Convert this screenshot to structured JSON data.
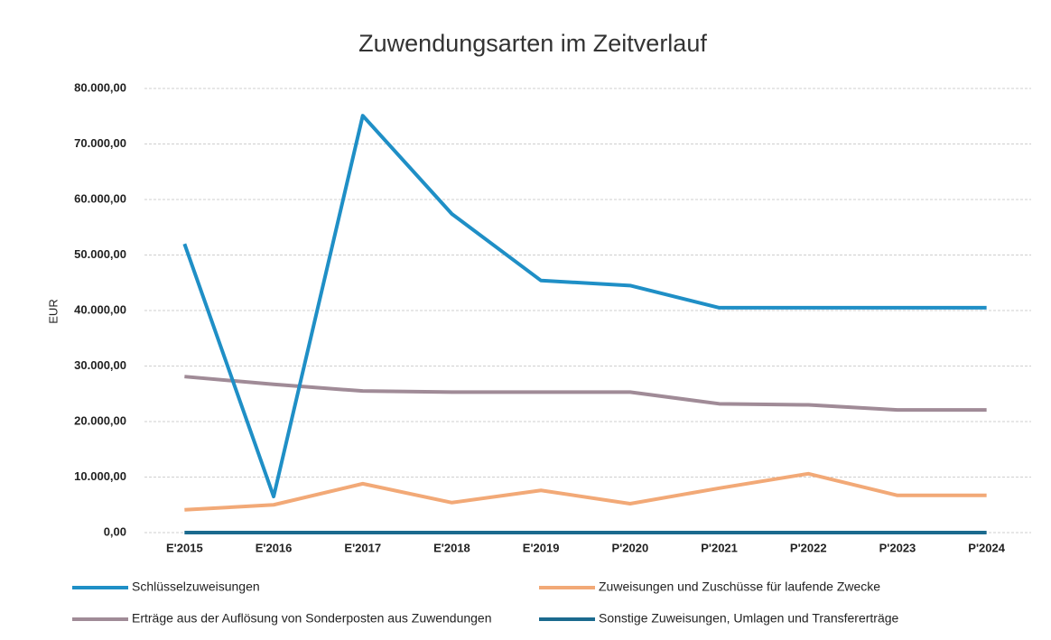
{
  "chart_data": {
    "type": "line",
    "title": "Zuwendungsarten im Zeitverlauf",
    "y_label": "EUR",
    "categories": [
      "E'2015",
      "E'2016",
      "E'2017",
      "E'2018",
      "E'2019",
      "P'2020",
      "P'2021",
      "P'2022",
      "P'2023",
      "P'2024"
    ],
    "series": [
      {
        "name": "Schlüsselzuweisungen",
        "color": "#1f8fc6",
        "values": [
          52000,
          6500,
          75100,
          57400,
          45400,
          44500,
          40500,
          40500,
          40500,
          40500
        ]
      },
      {
        "name": "Zuweisungen und Zuschüsse für laufende Zwecke",
        "color": "#f2a977",
        "values": [
          4100,
          5000,
          8800,
          5400,
          7600,
          5200,
          8000,
          10600,
          6700,
          6700
        ]
      },
      {
        "name": "Erträge aus der Auflösung von Sonderposten aus Zuwendungen",
        "color": "#a08b97",
        "values": [
          28100,
          26700,
          25500,
          25300,
          25300,
          25300,
          23200,
          23000,
          22100,
          22100
        ]
      },
      {
        "name": "Sonstige Zuweisungen, Umlagen und Transfererträge",
        "color": "#1b6a8e",
        "values": [
          0,
          0,
          0,
          0,
          0,
          0,
          0,
          0,
          0,
          0
        ]
      }
    ],
    "ylim": [
      0,
      80000
    ],
    "yticks": [
      {
        "value": 0,
        "label": "0,00"
      },
      {
        "value": 10000,
        "label": "10.000,00"
      },
      {
        "value": 20000,
        "label": "20.000,00"
      },
      {
        "value": 30000,
        "label": "30.000,00"
      },
      {
        "value": 40000,
        "label": "40.000,00"
      },
      {
        "value": 50000,
        "label": "50.000,00"
      },
      {
        "value": 60000,
        "label": "60.000,00"
      },
      {
        "value": 70000,
        "label": "70.000,00"
      },
      {
        "value": 80000,
        "label": "80.000,00"
      }
    ],
    "grid": true,
    "legend": "bottom"
  }
}
